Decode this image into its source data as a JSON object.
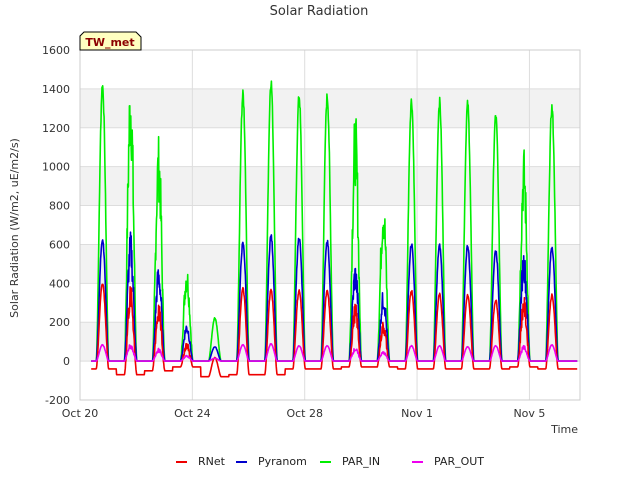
{
  "chart_data": {
    "type": "line",
    "title": "Solar Radiation",
    "xlabel": "Time",
    "ylabel": "Solar Radiation (W/m2, uE/m2/s)",
    "station_label": "TW_met",
    "xlim": [
      20,
      37.8
    ],
    "ylim": [
      -200,
      1600
    ],
    "x_unit": "days (October 20 = 20; Nov 1 = 32)",
    "x_ticks": [
      {
        "x": 20,
        "label": "Oct 20"
      },
      {
        "x": 24,
        "label": "Oct 24"
      },
      {
        "x": 28,
        "label": "Oct 28"
      },
      {
        "x": 32,
        "label": "Nov 1"
      },
      {
        "x": 36,
        "label": "Nov 5"
      }
    ],
    "y_ticks": [
      -200,
      0,
      200,
      400,
      600,
      800,
      1000,
      1200,
      1400,
      1600
    ],
    "grid": true,
    "alternating_bands": true,
    "legend_position": "bottom-center",
    "day_centers": [
      20.8,
      21.8,
      22.8,
      23.8,
      24.8,
      25.8,
      26.8,
      27.8,
      28.8,
      29.8,
      30.8,
      31.8,
      32.8,
      33.8,
      34.8,
      35.8,
      36.8
    ],
    "series": [
      {
        "name": "RNet",
        "color": "#ee0000",
        "peaks": [
          410,
          400,
          300,
          100,
          20,
          380,
          375,
          370,
          365,
          300,
          210,
          370,
          350,
          345,
          320,
          335,
          345
        ],
        "night": [
          -40,
          -70,
          -50,
          -30,
          -80,
          -70,
          -70,
          -40,
          -40,
          -30,
          -30,
          -40,
          -40,
          -40,
          -40,
          -30,
          -40
        ]
      },
      {
        "name": "Pyranom",
        "color": "#0000cc",
        "peaks": [
          640,
          670,
          500,
          200,
          75,
          615,
          655,
          650,
          630,
          510,
          370,
          615,
          605,
          605,
          580,
          580,
          600
        ],
        "night": [
          0,
          0,
          0,
          0,
          0,
          0,
          0,
          0,
          0,
          0,
          0,
          0,
          0,
          0,
          0,
          0,
          0
        ]
      },
      {
        "name": "PAR_IN",
        "color": "#00ee00",
        "peaks": [
          1445,
          1515,
          1170,
          500,
          225,
          1395,
          1465,
          1390,
          1385,
          1290,
          875,
          1365,
          1360,
          1345,
          1285,
          1105,
          1330
        ],
        "night": [
          0,
          0,
          0,
          0,
          0,
          0,
          0,
          0,
          0,
          0,
          0,
          0,
          0,
          0,
          0,
          0,
          0
        ]
      },
      {
        "name": "PAR_OUT",
        "color": "#ee00ee",
        "peaks": [
          85,
          90,
          65,
          30,
          15,
          85,
          90,
          80,
          80,
          70,
          50,
          80,
          80,
          75,
          80,
          80,
          85
        ],
        "night": [
          0,
          0,
          0,
          0,
          0,
          0,
          0,
          0,
          0,
          0,
          0,
          0,
          0,
          0,
          0,
          0,
          0
        ]
      }
    ]
  }
}
